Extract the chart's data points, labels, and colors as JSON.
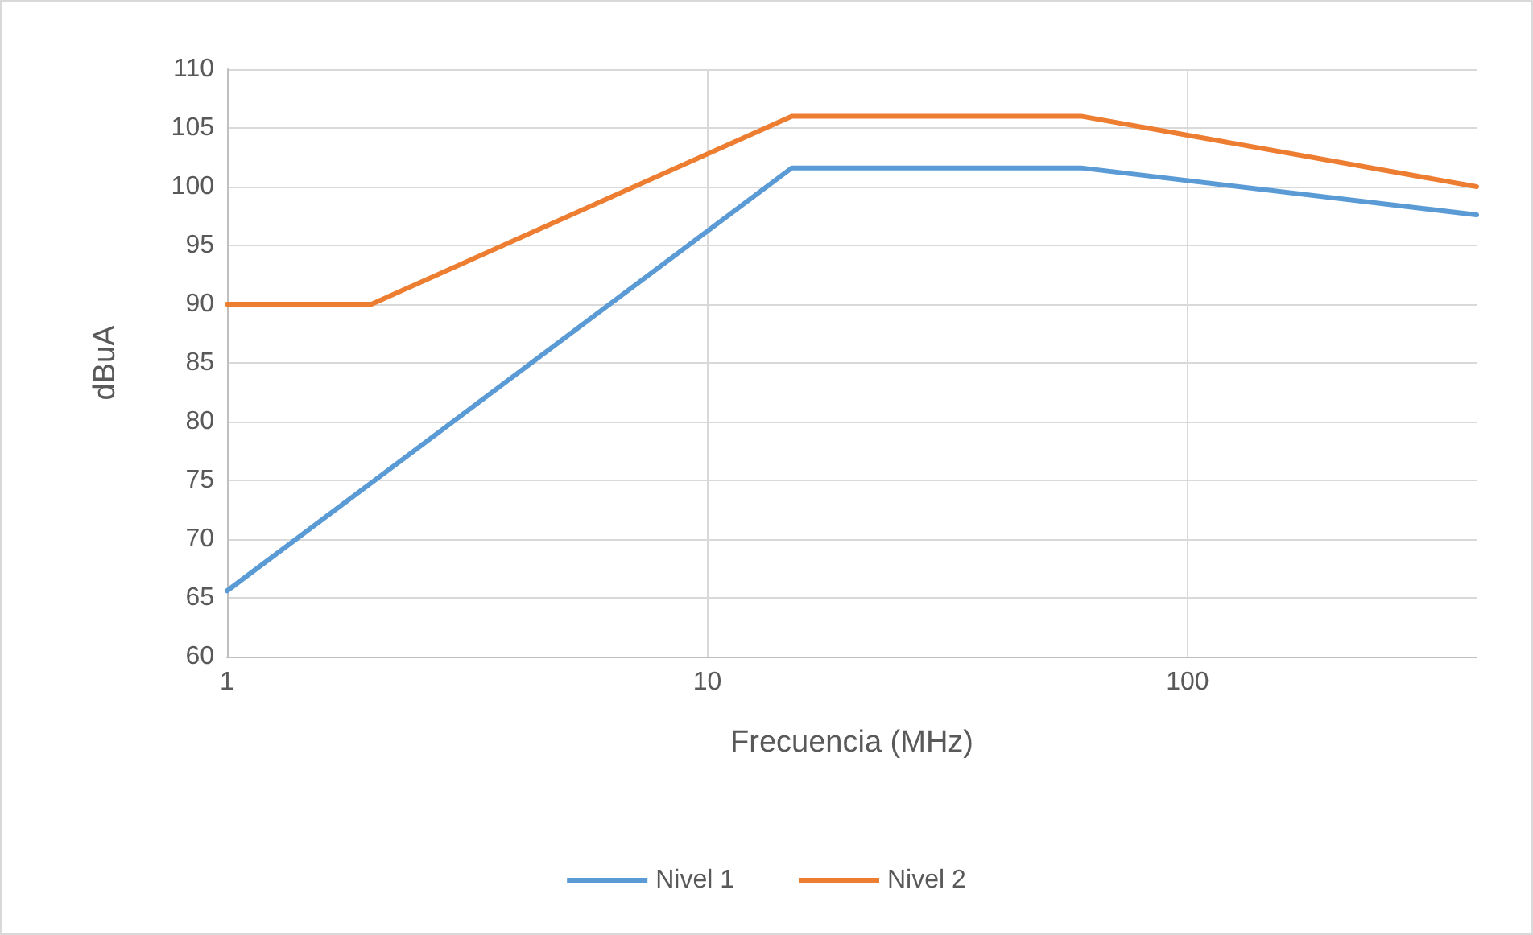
{
  "chart_data": {
    "type": "line",
    "xlabel": "Frecuencia (MHz)",
    "ylabel": "dBuA",
    "log": "x",
    "xlim": [
      1,
      400
    ],
    "xticks": [
      1,
      10,
      100
    ],
    "ylim": [
      60,
      110
    ],
    "yticks": [
      60,
      65,
      70,
      75,
      80,
      85,
      90,
      95,
      100,
      105,
      110
    ],
    "grid": true,
    "legend": "bottom",
    "marker": "none",
    "line_style": "solid",
    "series": [
      {
        "name": "Nivel 1",
        "color": "#5b9bd5",
        "x": [
          1,
          15,
          60,
          400
        ],
        "values": [
          65.6,
          101.6,
          101.6,
          97.6
        ]
      },
      {
        "name": "Nivel 2",
        "color": "#ed7d31",
        "x": [
          1,
          2,
          15,
          60,
          400
        ],
        "values": [
          90,
          90,
          106,
          106,
          100
        ]
      }
    ]
  }
}
